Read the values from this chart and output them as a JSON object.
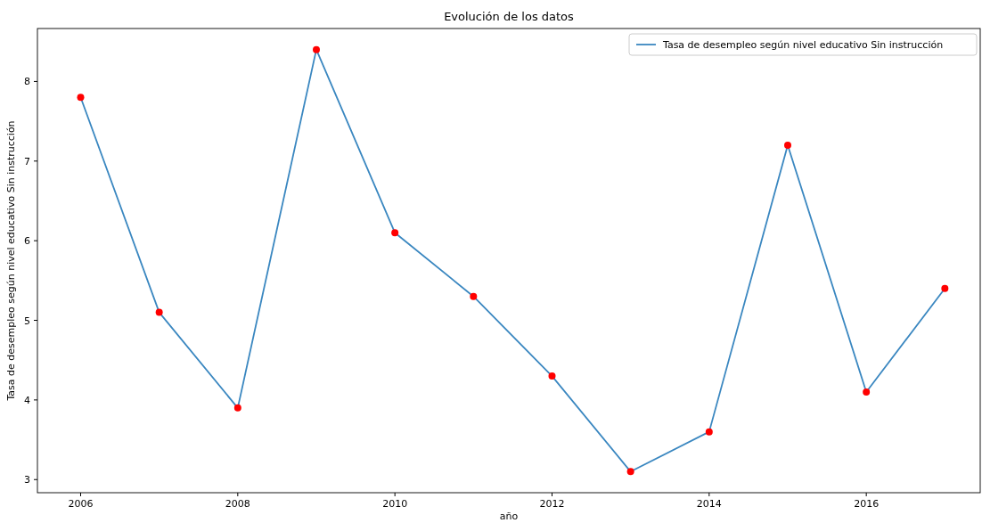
{
  "chart_data": {
    "type": "line",
    "title": "Evolución de los datos",
    "xlabel": "año",
    "ylabel": "Tasa de desempleo según nivel educativo Sin instrucción",
    "x": [
      2006,
      2007,
      2008,
      2009,
      2010,
      2011,
      2012,
      2013,
      2014,
      2015,
      2016,
      2017
    ],
    "series": [
      {
        "name": "Tasa de desempleo según nivel educativo Sin instrucción",
        "color": "#3a87c0",
        "values": [
          7.8,
          5.1,
          3.9,
          8.4,
          6.1,
          5.3,
          4.3,
          3.1,
          3.6,
          7.2,
          4.1,
          5.4
        ],
        "marker": "none",
        "line_style": "solid"
      },
      {
        "type": "scatter",
        "color": "#ff0000",
        "values": [
          7.8,
          5.1,
          3.9,
          8.4,
          6.1,
          5.3,
          4.3,
          3.1,
          3.6,
          7.2,
          4.1,
          5.4
        ],
        "marker": "circle"
      }
    ],
    "xlim": [
      2005.45,
      2017.45
    ],
    "xticks": [
      2006,
      2008,
      2010,
      2012,
      2014,
      2016
    ],
    "ylim": [
      2.835,
      8.665
    ],
    "yticks": [
      3,
      4,
      5,
      6,
      7,
      8
    ],
    "grid": false,
    "legend": "top right"
  }
}
